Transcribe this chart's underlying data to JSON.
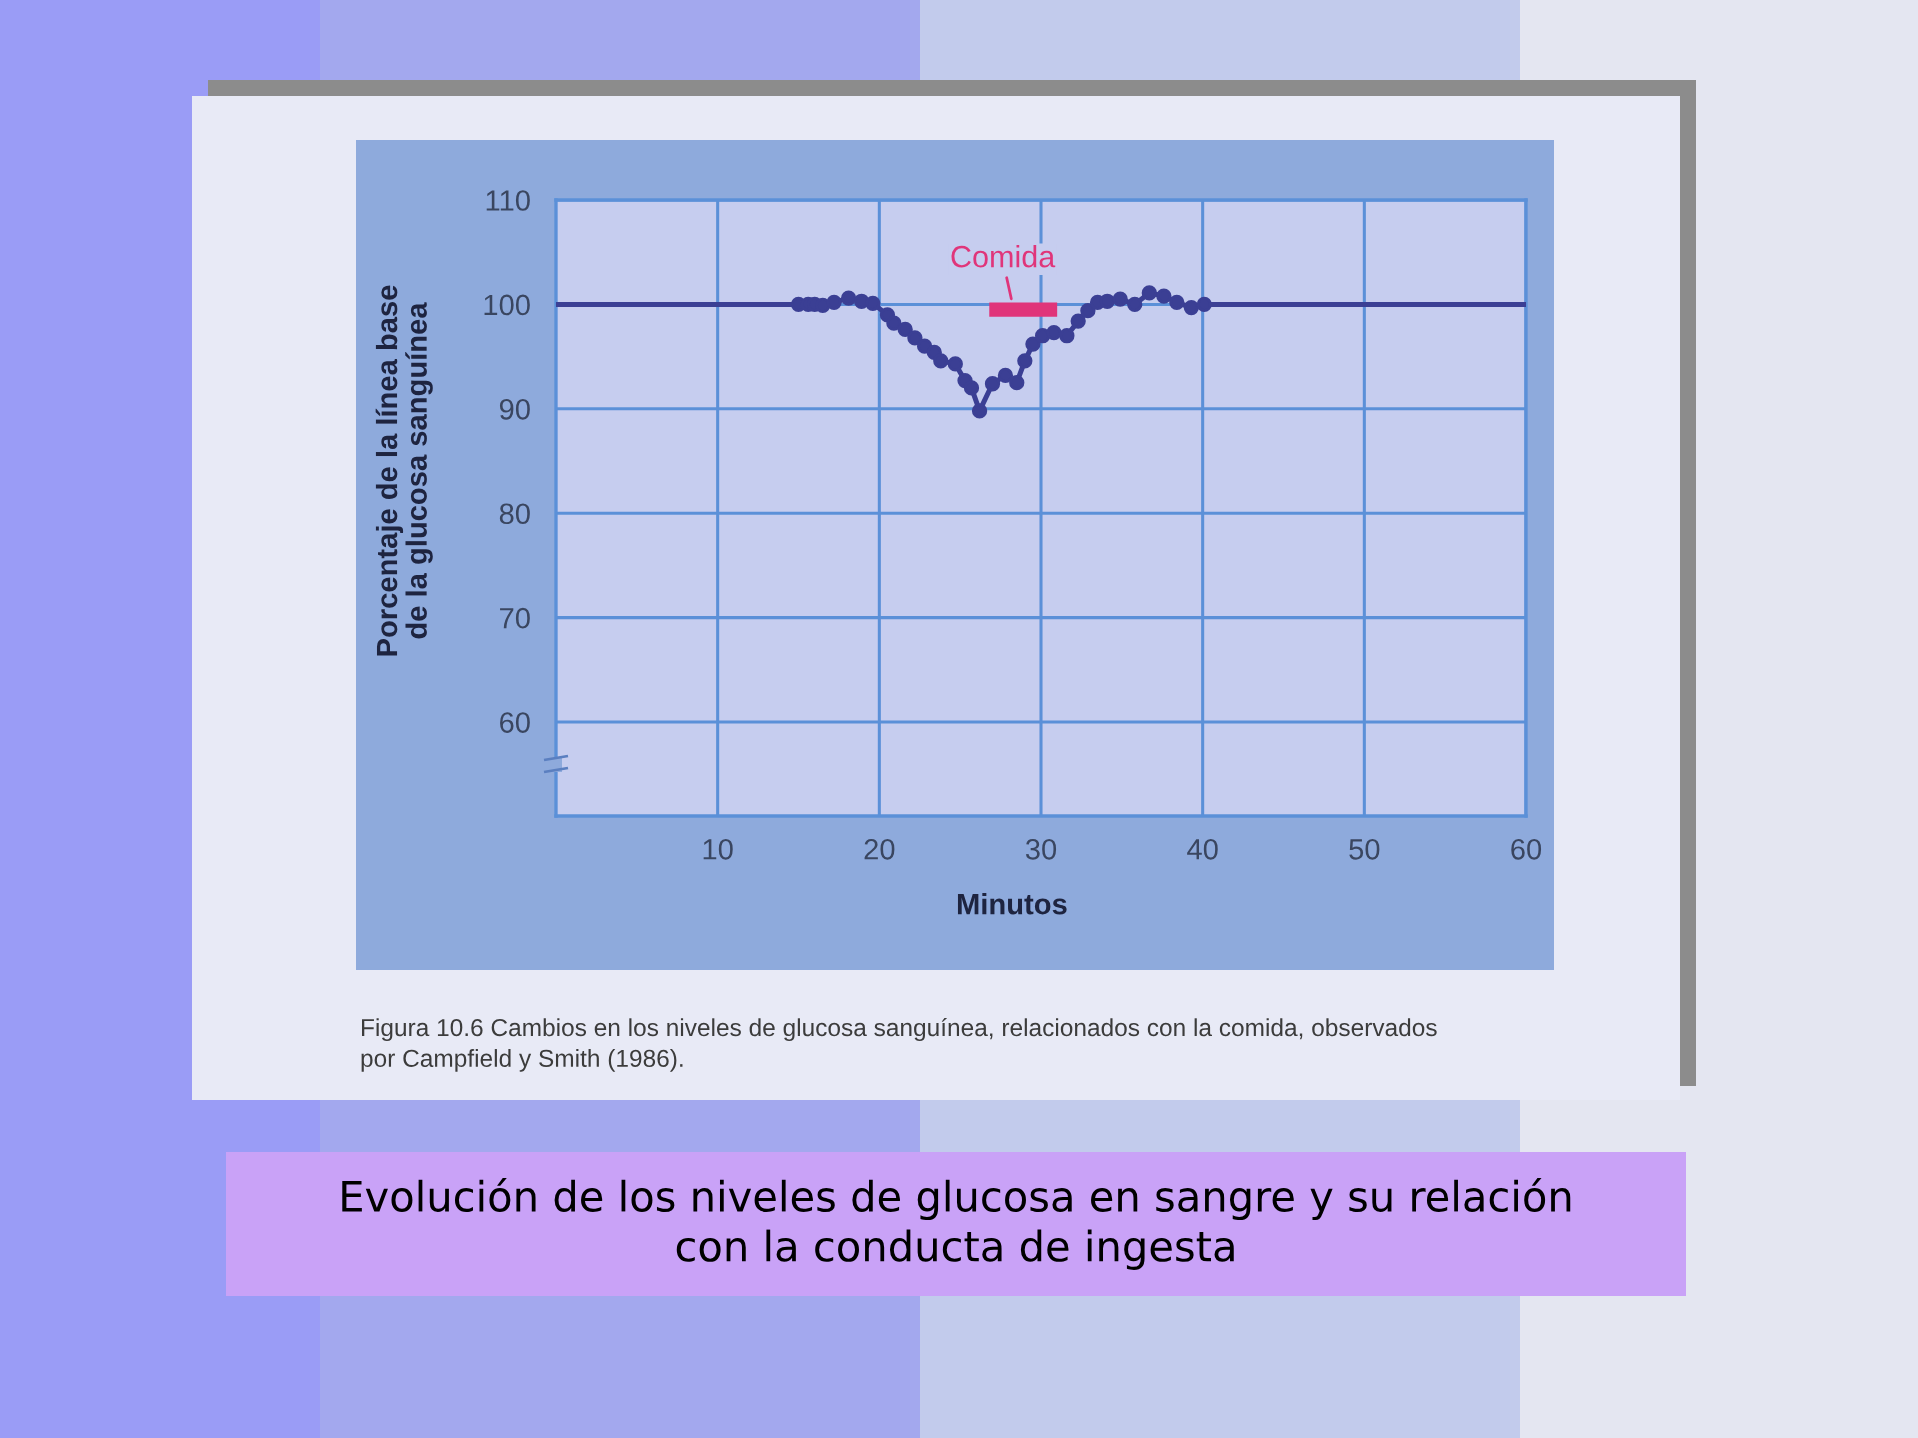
{
  "chart_data": {
    "type": "line",
    "title": "Evolución de los niveles de glucosa en sangre y su relación\ncon la conducta de ingesta",
    "xlabel": "Minutos",
    "ylabel": "Porcentaje de la línea base\nde la glucosa sanguínea",
    "annotations": [
      "Figura 10.6 Cambios en los niveles de glucosa sanguínea, relacionados con la comida, observados\npor Campfield y Smith (1986)."
    ],
    "series": [
      {
        "color": "#3b3f94",
        "marker": "none",
        "x": [
          0,
          14.6
        ],
        "values": [
          100,
          100
        ]
      },
      {
        "color": "#3b3f94",
        "x": [
          15.0,
          15.6,
          16.0,
          16.5,
          17.2,
          18.1,
          18.9,
          19.6,
          20.5,
          20.9,
          21.6,
          22.2,
          22.8,
          23.4,
          23.8,
          24.7,
          25.3,
          25.7,
          26.2,
          27.0,
          27.8,
          28.5,
          29.0,
          29.5,
          30.1,
          30.8,
          31.6,
          32.3,
          32.9,
          33.5,
          34.1,
          34.9,
          35.8,
          36.7,
          37.6,
          38.4,
          39.3,
          40.1
        ],
        "values": [
          100.0,
          100.0,
          100.0,
          99.9,
          100.2,
          100.6,
          100.3,
          100.1,
          99.0,
          98.2,
          97.6,
          96.8,
          96.0,
          95.4,
          94.6,
          94.3,
          92.7,
          92.0,
          89.8,
          92.4,
          93.2,
          92.5,
          94.6,
          96.2,
          97.0,
          97.3,
          97.0,
          98.4,
          99.4,
          100.2,
          100.3,
          100.5,
          100.0,
          101.1,
          100.8,
          100.2,
          99.7,
          100.0
        ]
      },
      {
        "color": "#3b3f94",
        "marker": "none",
        "x": [
          40.5,
          60
        ],
        "values": [
          100,
          100
        ]
      },
      {
        "name": "Comida",
        "color": "#e0357a",
        "marker": "none",
        "x": [
          26.8,
          31.0
        ],
        "values": [
          99.5,
          99.5
        ]
      }
    ],
    "xlim": [
      0,
      60
    ],
    "xticks": [
      10,
      20,
      30,
      40,
      50,
      60
    ],
    "ylim": [
      51,
      110
    ],
    "yticks": [
      60,
      70,
      80,
      90,
      100,
      110
    ],
    "grid": true,
    "marker": "circle",
    "line_style": "solid"
  }
}
